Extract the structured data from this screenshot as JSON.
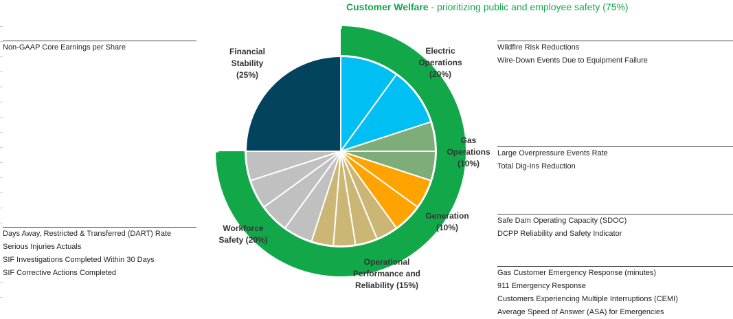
{
  "header": {
    "title_bold": "Customer Welfare",
    "title_rest": " - prioritizing public and employee safety (75%)"
  },
  "chart_data": {
    "type": "pie",
    "title": "Customer Welfare - prioritizing public and employee safety (75%)",
    "outer_ring": {
      "label": "Customer Welfare",
      "value": 75,
      "unit": "%",
      "color": "#12a84a"
    },
    "categories": [
      {
        "name": "Electric Operations",
        "label_lines": [
          "Electric",
          "Operations",
          "(20%)"
        ],
        "weight": 20,
        "color": "#00bff3",
        "slice_count": 2
      },
      {
        "name": "Gas Operations",
        "label_lines": [
          "Gas",
          "Operations",
          "(10%)"
        ],
        "weight": 10,
        "color": "#7fad79",
        "slice_count": 2
      },
      {
        "name": "Generation",
        "label_lines": [
          "Generation",
          "(10%)"
        ],
        "weight": 10,
        "color": "#ffa300",
        "slice_count": 2
      },
      {
        "name": "Operational Performance and Reliability",
        "label_lines": [
          "Operational",
          "Performance and",
          "Reliability (15%)"
        ],
        "weight": 15,
        "color": "#cbb676",
        "slice_count": 4
      },
      {
        "name": "Workforce Safety",
        "label_lines": [
          "Workforce",
          "Safety (20%)"
        ],
        "weight": 20,
        "color": "#c0c0c0",
        "slice_count": 4
      },
      {
        "name": "Financial Stability",
        "label_lines": [
          "Financial",
          "Stability",
          "(25%)"
        ],
        "weight": 25,
        "color": "#02435e",
        "slice_count": 1
      }
    ],
    "values": [
      25,
      20,
      10,
      10,
      15,
      20
    ]
  },
  "metrics": {
    "financial": [
      "Non-GAAP Core Earnings per Share"
    ],
    "electric": [
      "Wildfire Risk Reductions",
      "Wire-Down Events Due to Equipment Failure"
    ],
    "gas": [
      "Large Overpressure Events Rate",
      "Total Dig-Ins Reduction"
    ],
    "generation": [
      "Safe Dam Operating Capacity (SDOC)",
      "DCPP Reliability and Safety Indicator"
    ],
    "operational": [
      "Gas Customer Emergency Response (minutes)",
      "911 Emergency Response",
      "Customers Experiencing Multiple Interruptions (CEMI)",
      "Average Speed of Answer (ASA) for Emergencies"
    ],
    "workforce": [
      "Days Away, Restricted & Transferred (DART) Rate",
      "Serious Injuries Actuals",
      "SIF Investigations Completed Within 30 Days",
      "SIF Corrective Actions Completed"
    ]
  }
}
